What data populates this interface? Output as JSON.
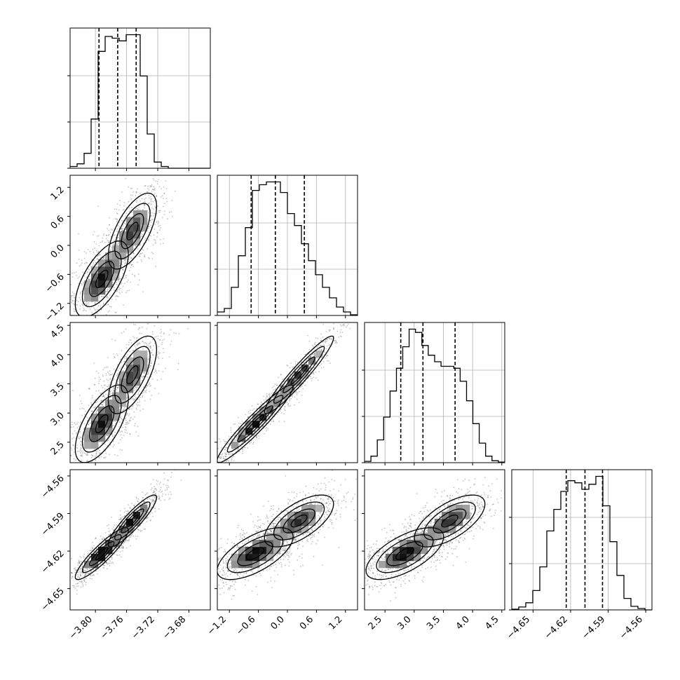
{
  "chart_data": {
    "type": "corner",
    "parameters": [
      "p0",
      "p1",
      "p2",
      "p3"
    ],
    "axis_ranges": {
      "p0": [
        -3.8325,
        -3.6525
      ],
      "p1": [
        -1.45,
        1.45
      ],
      "p2": [
        2.15,
        4.55
      ],
      "p3": [
        -4.667,
        -4.555
      ]
    },
    "ticks": {
      "p0": [
        -3.8,
        -3.76,
        -3.72,
        -3.68
      ],
      "p1": [
        -1.2,
        -0.6,
        0.0,
        0.6,
        1.2
      ],
      "p2": [
        2.5,
        3.0,
        3.5,
        4.0,
        4.5
      ],
      "p3": [
        -4.65,
        -4.62,
        -4.59,
        -4.56
      ]
    },
    "tick_labels": {
      "p0": [
        "−3.80",
        "−3.76",
        "−3.72",
        "−3.68"
      ],
      "p1": [
        "−1.2",
        "−0.6",
        "0.0",
        "0.6",
        "1.2"
      ],
      "p2": [
        "2.5",
        "3.0",
        "3.5",
        "4.0",
        "4.5"
      ],
      "p3": [
        "−4.65",
        "−4.62",
        "−4.59",
        "−4.56"
      ]
    },
    "quantiles": {
      "p0": [
        -3.7954,
        -3.7714,
        -3.7477
      ],
      "p1": [
        -0.75,
        -0.25,
        0.35
      ],
      "p2": [
        2.77,
        3.15,
        3.7
      ],
      "p3": [
        -4.6235,
        -4.6085,
        -4.5945
      ]
    },
    "histograms": {
      "p0": [
        2,
        5,
        17,
        56,
        133,
        150,
        148,
        145,
        152,
        152,
        105,
        39,
        7,
        2,
        0,
        0,
        0,
        0,
        0,
        0
      ],
      "p1": [
        5,
        10,
        40,
        85,
        125,
        178,
        186,
        190,
        190,
        175,
        145,
        128,
        102,
        78,
        58,
        40,
        25,
        12,
        5,
        1
      ],
      "p2": [
        2,
        10,
        35,
        70,
        110,
        145,
        178,
        205,
        200,
        180,
        165,
        155,
        148,
        148,
        145,
        125,
        95,
        60,
        30,
        10,
        3,
        1
      ],
      "p3": [
        1,
        4,
        10,
        27,
        60,
        110,
        140,
        165,
        180,
        177,
        168,
        175,
        186,
        145,
        95,
        48,
        16,
        5,
        2,
        0
      ]
    },
    "grid": true,
    "contour_levels": 4
  }
}
